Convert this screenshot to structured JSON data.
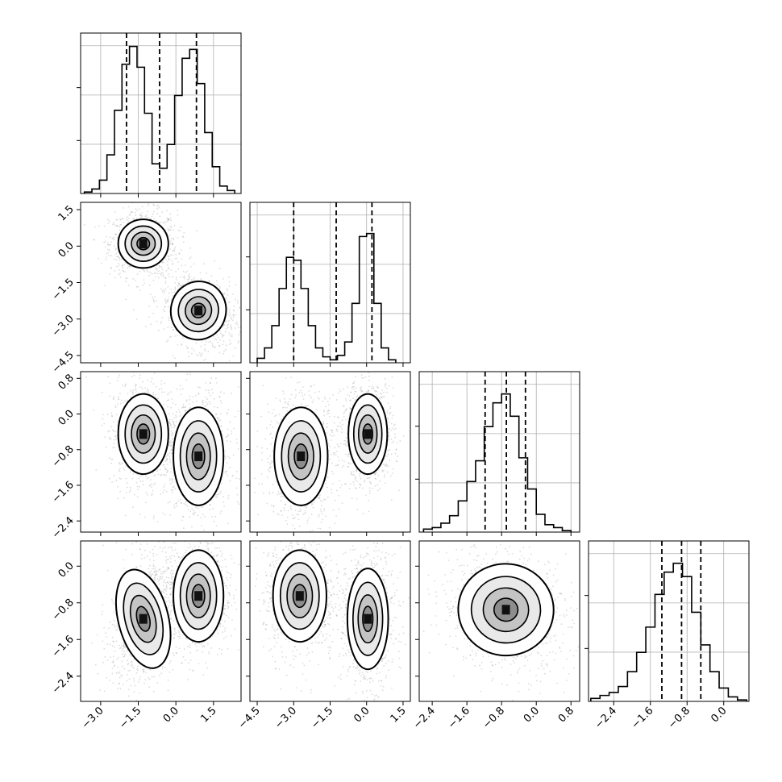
{
  "figure": {
    "kind": "corner-plot",
    "background": "#ffffff",
    "ink_color": "#000000",
    "grid_color": "#b0b0b0"
  },
  "chart_data": [
    {
      "type": "histogram",
      "panel": "diag-1",
      "grid": true,
      "xlim": [
        -3.8,
        2.6
      ],
      "xticks": [
        -3.0,
        -1.5,
        0.0,
        1.5
      ],
      "x_tick_labels_shown": false,
      "y_tick_labels_shown": false,
      "bin_edges": [
        -3.65,
        -3.35,
        -3.05,
        -2.75,
        -2.45,
        -2.15,
        -1.85,
        -1.55,
        -1.25,
        -0.95,
        -0.65,
        -0.35,
        -0.05,
        0.25,
        0.55,
        0.85,
        1.15,
        1.45,
        1.75,
        2.05,
        2.35
      ],
      "counts": [
        0.01,
        0.03,
        0.09,
        0.26,
        0.56,
        0.87,
        0.99,
        0.85,
        0.54,
        0.2,
        0.17,
        0.33,
        0.66,
        0.91,
        0.97,
        0.74,
        0.41,
        0.18,
        0.05,
        0.02
      ],
      "quantile_lines": [
        -1.97,
        -0.65,
        0.82
      ]
    },
    {
      "type": "scatter-density",
      "panel": "pair-2-1",
      "xlim": [
        -3.8,
        2.6
      ],
      "ylim": [
        -4.8,
        1.8
      ],
      "xticks": [
        -3.0,
        -1.5,
        0.0,
        1.5
      ],
      "yticks": [
        -4.5,
        -3.0,
        -1.5,
        0.0,
        1.5
      ],
      "y_tick_labels": [
        "−4.5",
        "−3.0",
        "−1.5",
        "0.0",
        "1.5"
      ],
      "clusters": [
        {
          "center_x": -1.3,
          "center_y": 0.1,
          "spread_x": 0.5,
          "spread_y": 0.5,
          "corr": 0.0
        },
        {
          "center_x": 0.9,
          "center_y": -2.65,
          "spread_x": 0.55,
          "spread_y": 0.6,
          "corr": -0.3
        }
      ]
    },
    {
      "type": "histogram",
      "panel": "diag-2",
      "grid": true,
      "xlim": [
        -4.8,
        1.8
      ],
      "xticks": [
        -4.5,
        -3.0,
        -1.5,
        0.0,
        1.5
      ],
      "x_tick_labels_shown": false,
      "y_tick_labels_shown": false,
      "bin_edges": [
        -4.5,
        -4.2,
        -3.9,
        -3.6,
        -3.3,
        -3.0,
        -2.7,
        -2.4,
        -2.1,
        -1.8,
        -1.5,
        -1.2,
        -0.9,
        -0.6,
        -0.3,
        0.0,
        0.3,
        0.6,
        0.9,
        1.2
      ],
      "counts": [
        0.03,
        0.1,
        0.25,
        0.5,
        0.71,
        0.69,
        0.5,
        0.25,
        0.1,
        0.04,
        0.02,
        0.05,
        0.14,
        0.4,
        0.85,
        0.87,
        0.4,
        0.1,
        0.02
      ],
      "quantile_lines": [
        -3.0,
        -1.25,
        0.22
      ]
    },
    {
      "type": "scatter-density",
      "panel": "pair-3-1",
      "xlim": [
        -3.8,
        2.6
      ],
      "ylim": [
        -2.65,
        0.95
      ],
      "xticks": [
        -3.0,
        -1.5,
        0.0,
        1.5
      ],
      "yticks": [
        -2.4,
        -1.6,
        -0.8,
        0.0,
        0.8
      ],
      "y_tick_labels": [
        "−2.4",
        "−1.6",
        "−0.8",
        "0.0",
        "0.8"
      ],
      "clusters": [
        {
          "center_x": -1.3,
          "center_y": -0.45,
          "spread_x": 0.5,
          "spread_y": 0.45,
          "corr": 0.0
        },
        {
          "center_x": 0.9,
          "center_y": -0.95,
          "spread_x": 0.5,
          "spread_y": 0.55,
          "corr": 0.0
        }
      ]
    },
    {
      "type": "scatter-density",
      "panel": "pair-3-2",
      "xlim": [
        -4.8,
        1.8
      ],
      "ylim": [
        -2.65,
        0.95
      ],
      "xticks": [
        -4.5,
        -3.0,
        -1.5,
        0.0,
        1.5
      ],
      "yticks": [
        -2.4,
        -1.6,
        -0.8,
        0.0,
        0.8
      ],
      "clusters": [
        {
          "center_x": -2.7,
          "center_y": -0.95,
          "spread_x": 0.55,
          "spread_y": 0.55,
          "corr": 0.0
        },
        {
          "center_x": 0.05,
          "center_y": -0.45,
          "spread_x": 0.4,
          "spread_y": 0.45,
          "corr": 0.0
        }
      ]
    },
    {
      "type": "histogram",
      "panel": "diag-3",
      "grid": true,
      "xlim": [
        -2.7,
        1.0
      ],
      "xticks": [
        -2.4,
        -1.6,
        -0.8,
        0.0,
        0.8
      ],
      "x_tick_labels_shown": false,
      "y_tick_labels_shown": false,
      "bin_edges": [
        -2.6,
        -2.4,
        -2.2,
        -2.0,
        -1.8,
        -1.6,
        -1.4,
        -1.2,
        -1.0,
        -0.8,
        -0.6,
        -0.4,
        -0.2,
        0.0,
        0.2,
        0.4,
        0.6,
        0.8
      ],
      "counts": [
        0.02,
        0.03,
        0.06,
        0.11,
        0.21,
        0.34,
        0.48,
        0.71,
        0.87,
        0.93,
        0.78,
        0.5,
        0.29,
        0.12,
        0.05,
        0.03,
        0.01
      ],
      "quantile_lines": [
        -1.18,
        -0.69,
        -0.25
      ]
    },
    {
      "type": "scatter-density",
      "panel": "pair-4-1",
      "xlim": [
        -3.8,
        2.6
      ],
      "ylim": [
        -2.95,
        0.55
      ],
      "xticks": [
        -3.0,
        -1.5,
        0.0,
        1.5
      ],
      "yticks": [
        -2.4,
        -1.6,
        -0.8,
        0.0
      ],
      "y_tick_labels": [
        "−2.4",
        "−1.6",
        "−0.8",
        "0.0"
      ],
      "x_tick_labels": [
        "−3.0",
        "−1.5",
        "0.0",
        "1.5"
      ],
      "clusters": [
        {
          "center_x": -1.3,
          "center_y": -1.15,
          "spread_x": 0.5,
          "spread_y": 0.55,
          "corr": 0.35
        },
        {
          "center_x": 0.9,
          "center_y": -0.65,
          "spread_x": 0.5,
          "spread_y": 0.5,
          "corr": 0.0
        }
      ]
    },
    {
      "type": "scatter-density",
      "panel": "pair-4-2",
      "xlim": [
        -4.8,
        1.8
      ],
      "ylim": [
        -2.95,
        0.55
      ],
      "xticks": [
        -4.5,
        -3.0,
        -1.5,
        0.0,
        1.5
      ],
      "yticks": [
        -2.4,
        -1.6,
        -0.8,
        0.0
      ],
      "x_tick_labels": [
        "−4.5",
        "−3.0",
        "−1.5",
        "0.0",
        "1.5"
      ],
      "clusters": [
        {
          "center_x": -2.75,
          "center_y": -0.65,
          "spread_x": 0.55,
          "spread_y": 0.5,
          "corr": 0.0
        },
        {
          "center_x": 0.05,
          "center_y": -1.15,
          "spread_x": 0.42,
          "spread_y": 0.55,
          "corr": 0.0
        }
      ]
    },
    {
      "type": "scatter-density",
      "panel": "pair-4-3",
      "xlim": [
        -2.7,
        1.0
      ],
      "ylim": [
        -2.95,
        0.55
      ],
      "xticks": [
        -2.4,
        -1.6,
        -0.8,
        0.0,
        0.8
      ],
      "yticks": [
        -2.4,
        -1.6,
        -0.8,
        0.0
      ],
      "x_tick_labels": [
        "−2.4",
        "−1.6",
        "−0.8",
        "0.0",
        "0.8"
      ],
      "clusters": [
        {
          "center_x": -0.7,
          "center_y": -0.95,
          "spread_x": 0.55,
          "spread_y": 0.5,
          "corr": -0.15
        }
      ]
    },
    {
      "type": "histogram",
      "panel": "diag-4",
      "grid": true,
      "xlim": [
        -2.95,
        0.55
      ],
      "xticks": [
        -2.4,
        -1.6,
        -0.8,
        0.0
      ],
      "x_tick_labels": [
        "−2.4",
        "−1.6",
        "−0.8",
        "0.0"
      ],
      "y_tick_labels_shown": false,
      "bin_edges": [
        -2.9,
        -2.7,
        -2.5,
        -2.3,
        -2.1,
        -1.9,
        -1.7,
        -1.5,
        -1.3,
        -1.1,
        -0.9,
        -0.7,
        -0.5,
        -0.3,
        -0.1,
        0.1,
        0.3,
        0.5
      ],
      "counts": [
        0.02,
        0.04,
        0.06,
        0.1,
        0.2,
        0.33,
        0.5,
        0.72,
        0.87,
        0.93,
        0.84,
        0.6,
        0.38,
        0.2,
        0.09,
        0.03,
        0.01
      ],
      "quantile_lines": [
        -1.35,
        -0.92,
        -0.5
      ]
    }
  ]
}
